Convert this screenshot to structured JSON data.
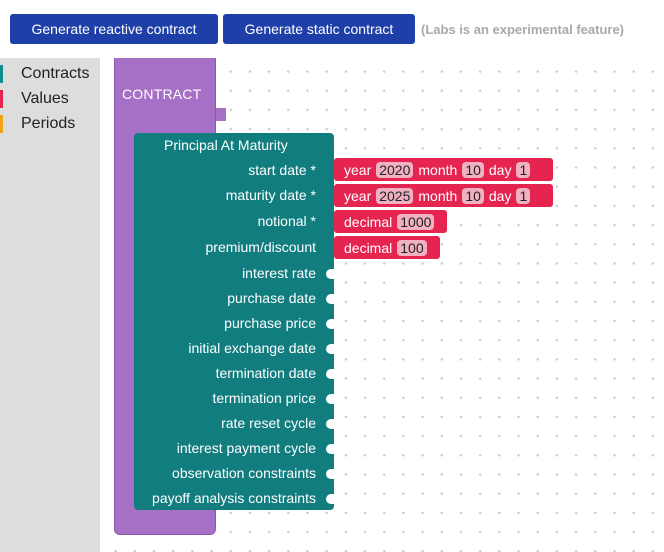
{
  "topbar": {
    "reactive_button": "Generate reactive contract",
    "static_button": "Generate static contract",
    "labs_note": "(Labs is an experimental feature)"
  },
  "toolbox": {
    "categories": [
      {
        "label": "Contracts",
        "color": "#0f8c8e"
      },
      {
        "label": "Values",
        "color": "#e52550"
      },
      {
        "label": "Periods",
        "color": "#f1a417"
      }
    ]
  },
  "workspace": {
    "contract_block": {
      "title": "CONTRACT",
      "color": "#a570c5"
    },
    "pam_block": {
      "title": "Principal At Maturity",
      "color": "#127d7f",
      "fields": [
        "start date *",
        "maturity date *",
        "notional *",
        "premium/discount",
        "interest rate",
        "purchase date",
        "purchase price",
        "initial exchange date",
        "termination date",
        "termination price",
        "rate reset cycle",
        "interest payment cycle",
        "observation constraints",
        "payoff analysis constraints"
      ]
    },
    "value_blocks": {
      "start_date": {
        "year_label": "year",
        "year": "2020",
        "month_label": "month",
        "month": "10",
        "day_label": "day",
        "day": "1"
      },
      "maturity_date": {
        "year_label": "year",
        "year": "2025",
        "month_label": "month",
        "month": "10",
        "day_label": "day",
        "day": "1"
      },
      "notional": {
        "label": "decimal",
        "value": "1000"
      },
      "premium": {
        "label": "decimal",
        "value": "100"
      },
      "color": "#e52550"
    }
  }
}
